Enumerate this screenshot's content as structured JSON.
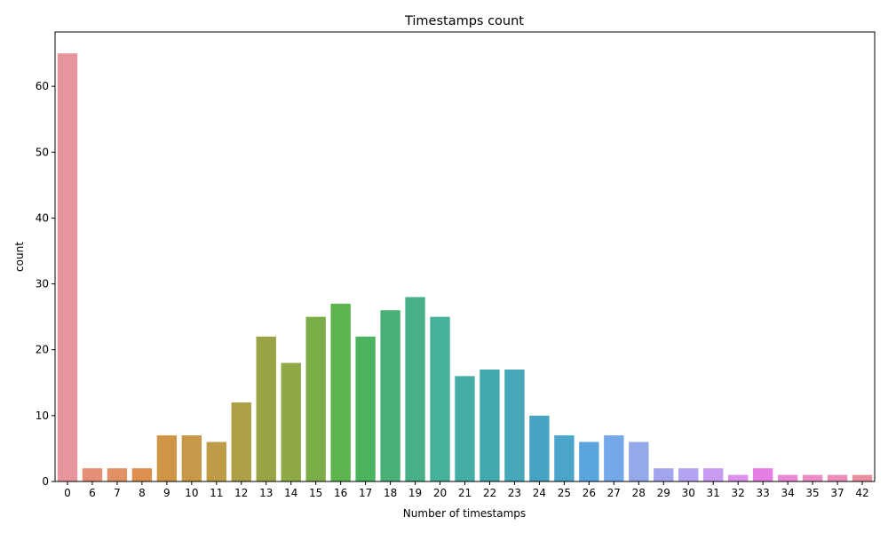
{
  "chart_data": {
    "type": "bar",
    "title": "Timestamps count",
    "xlabel": "Number of timestamps",
    "ylabel": "count",
    "categories": [
      "0",
      "6",
      "7",
      "8",
      "9",
      "10",
      "11",
      "12",
      "13",
      "14",
      "15",
      "16",
      "17",
      "18",
      "19",
      "20",
      "21",
      "22",
      "23",
      "24",
      "25",
      "26",
      "27",
      "28",
      "29",
      "30",
      "31",
      "32",
      "33",
      "34",
      "35",
      "37",
      "42"
    ],
    "values": [
      65,
      2,
      2,
      2,
      7,
      7,
      6,
      12,
      22,
      18,
      25,
      27,
      22,
      26,
      28,
      25,
      16,
      17,
      17,
      10,
      7,
      6,
      7,
      6,
      2,
      2,
      2,
      1,
      2,
      1,
      1,
      1,
      1
    ],
    "colors": [
      "#e8949d",
      "#e58f77",
      "#e19165",
      "#dc8f4e",
      "#cf9547",
      "#c69848",
      "#bd9b47",
      "#aea046",
      "#9ba444",
      "#8fa946",
      "#7cae47",
      "#5db44c",
      "#4ab45f",
      "#49b077",
      "#48b089",
      "#46b09b",
      "#45ada5",
      "#44a9ae",
      "#45a7b7",
      "#46a3c2",
      "#4ba5cb",
      "#5aa5dd",
      "#74a8e8",
      "#93a9e8",
      "#a3a5ee",
      "#b4a3f0",
      "#c79cf0",
      "#dd90ed",
      "#e57fe6",
      "#e98ad6",
      "#ea8cc8",
      "#ea8db8",
      "#e9909f"
    ],
    "ylim": [
      0,
      68.25
    ],
    "yticks": [
      0,
      10,
      20,
      30,
      40,
      50,
      60
    ],
    "grid": false,
    "legend": "none"
  }
}
